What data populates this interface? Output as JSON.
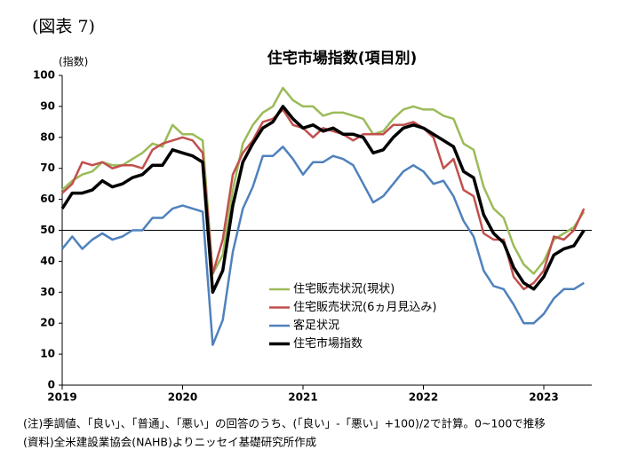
{
  "label": "(図表 7)",
  "chart_data": {
    "type": "line",
    "title": "住宅市場指数(項目別)",
    "y_label": "(指数)",
    "categories": [
      "2019",
      null,
      null,
      null,
      null,
      null,
      null,
      null,
      null,
      null,
      null,
      null,
      "2020",
      null,
      null,
      null,
      null,
      null,
      null,
      null,
      null,
      null,
      null,
      null,
      "2021",
      null,
      null,
      null,
      null,
      null,
      null,
      null,
      null,
      null,
      null,
      null,
      "2022",
      null,
      null,
      null,
      null,
      null,
      null,
      null,
      null,
      null,
      null,
      null,
      "2023",
      null,
      null,
      null,
      null
    ],
    "ylim": [
      0,
      100
    ],
    "yticks": [
      0,
      10,
      20,
      30,
      40,
      50,
      60,
      70,
      80,
      90,
      100
    ],
    "hline": 50,
    "series": [
      {
        "name": "住宅販売状況(現状)",
        "color": "#9bbb59",
        "width": 2.5,
        "values": [
          63,
          66,
          68,
          69,
          72,
          71,
          71,
          73,
          75,
          78,
          77,
          84,
          81,
          81,
          79,
          36,
          42,
          63,
          78,
          84,
          88,
          90,
          96,
          92,
          90,
          90,
          87,
          88,
          88,
          87,
          86,
          81,
          82,
          86,
          89,
          90,
          89,
          89,
          87,
          86,
          78,
          76,
          64,
          57,
          54,
          45,
          39,
          36,
          40,
          47,
          49,
          51,
          56
        ]
      },
      {
        "name": "住宅販売状況(6ヵ月見込み)",
        "color": "#c0504d",
        "width": 2.5,
        "values": [
          62,
          65,
          72,
          71,
          72,
          70,
          71,
          71,
          70,
          76,
          78,
          79,
          80,
          79,
          75,
          36,
          47,
          68,
          75,
          79,
          85,
          86,
          89,
          84,
          83,
          80,
          83,
          82,
          81,
          79,
          81,
          81,
          81,
          84,
          84,
          85,
          83,
          80,
          70,
          73,
          63,
          61,
          49,
          47,
          47,
          35,
          31,
          33,
          37,
          48,
          47,
          50,
          57
        ]
      },
      {
        "name": "客足状況",
        "color": "#4f81bd",
        "width": 2.5,
        "values": [
          44,
          48,
          44,
          47,
          49,
          47,
          48,
          50,
          50,
          54,
          54,
          57,
          58,
          57,
          56,
          13,
          21,
          43,
          57,
          64,
          74,
          74,
          77,
          73,
          68,
          72,
          72,
          74,
          73,
          71,
          65,
          59,
          61,
          65,
          69,
          71,
          69,
          65,
          66,
          61,
          53,
          48,
          37,
          32,
          31,
          26,
          20,
          20,
          23,
          28,
          31,
          31,
          33
        ]
      },
      {
        "name": "住宅市場指数",
        "color": "#000000",
        "width": 3.5,
        "values": [
          57,
          62,
          62,
          63,
          66,
          64,
          65,
          67,
          68,
          71,
          71,
          76,
          75,
          74,
          72,
          30,
          37,
          58,
          72,
          78,
          83,
          85,
          90,
          86,
          83,
          84,
          82,
          83,
          81,
          81,
          80,
          75,
          76,
          80,
          83,
          84,
          83,
          81,
          79,
          77,
          69,
          67,
          55,
          49,
          46,
          38,
          33,
          31,
          35,
          42,
          44,
          45,
          50
        ]
      }
    ]
  },
  "notes": [
    "(注)季調値、「良い」、「普通」、「悪い」の回答のうち、(「良い」-「悪い」+100)/2で計算。0~100で推移",
    "(資料)全米建設業協会(NAHB)よりニッセイ基礎研究所作成"
  ]
}
